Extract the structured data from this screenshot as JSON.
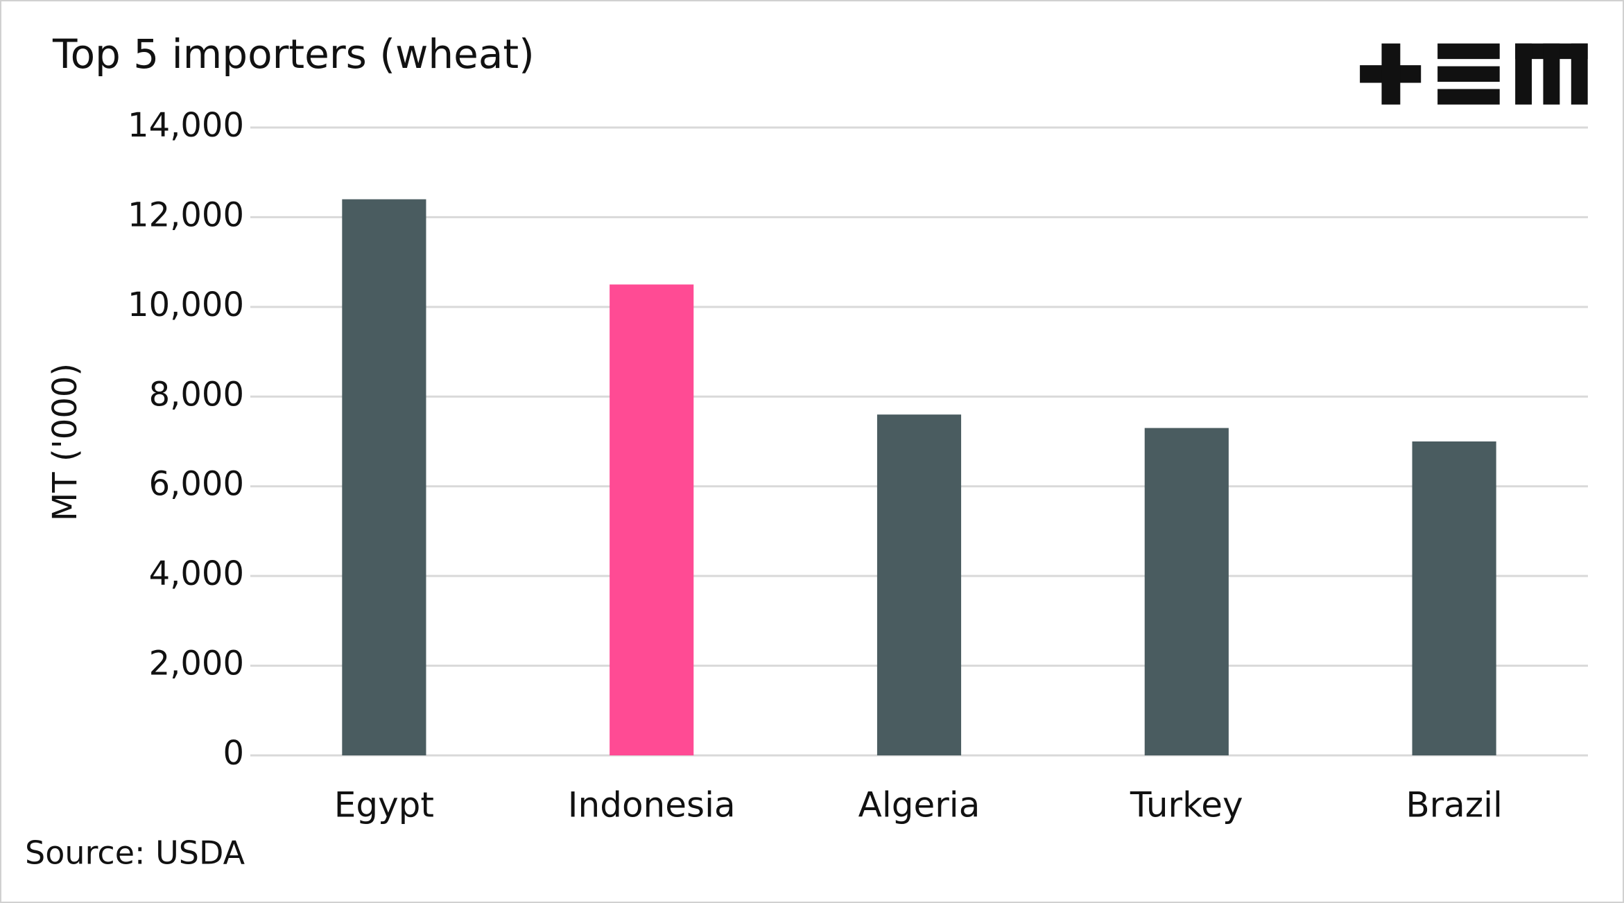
{
  "chart_data": {
    "type": "bar",
    "title": "Top 5 importers (wheat)",
    "y_label": "MT ('000)",
    "source": "Source: USDA",
    "categories": [
      "Egypt",
      "Indonesia",
      "Algeria",
      "Turkey",
      "Brazil"
    ],
    "values": [
      12400,
      10500,
      7600,
      7300,
      7000
    ],
    "colors": [
      "#4a5c60",
      "#ff4b94",
      "#4a5c60",
      "#4a5c60",
      "#4a5c60"
    ],
    "ylim": [
      0,
      14000
    ],
    "yticks": [
      0,
      {
        "value": 2000,
        "label": "2,000"
      },
      {
        "value": 4000,
        "label": "4,000"
      },
      {
        "value": 6000,
        "label": "6,000"
      },
      {
        "value": 8000,
        "label": "8,000"
      },
      {
        "value": 10000,
        "label": "10,000"
      },
      {
        "value": 12000,
        "label": "12,000"
      },
      {
        "value": 14000,
        "label": "14,000"
      }
    ],
    "grid": true
  }
}
